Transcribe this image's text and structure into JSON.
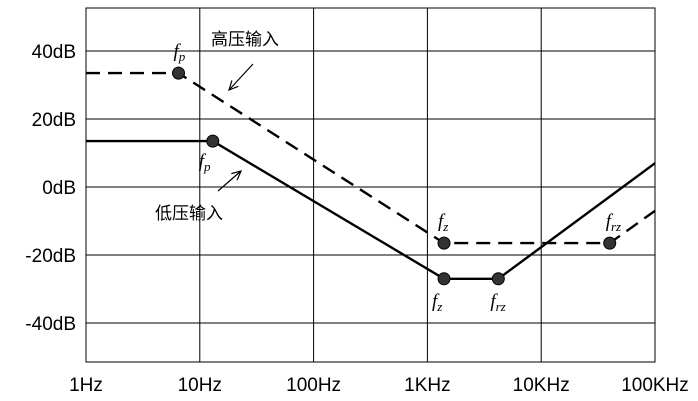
{
  "chart_data": {
    "type": "line",
    "title": "",
    "xlabel": "",
    "ylabel": "",
    "x_scale": "log",
    "xlim": [
      1,
      100000
    ],
    "ylim": [
      -50,
      50
    ],
    "grid": true,
    "x_ticks": [
      {
        "value": 1,
        "label": "1Hz"
      },
      {
        "value": 10,
        "label": "10Hz"
      },
      {
        "value": 100,
        "label": "100Hz"
      },
      {
        "value": 1000,
        "label": "1KHz"
      },
      {
        "value": 10000,
        "label": "10KHz"
      },
      {
        "value": 100000,
        "label": "100KHz"
      }
    ],
    "y_ticks": [
      {
        "value": 40,
        "label": "40dB"
      },
      {
        "value": 20,
        "label": "20dB"
      },
      {
        "value": 0,
        "label": "0dB"
      },
      {
        "value": -20,
        "label": "-20dB"
      },
      {
        "value": -40,
        "label": "-40dB"
      }
    ],
    "series": [
      {
        "name": "高压输入",
        "style": "dashed",
        "color": "#000000",
        "points": [
          [
            1,
            33.5
          ],
          [
            6.5,
            33.5
          ],
          [
            1400,
            -16.5
          ],
          [
            4200,
            -16.5
          ],
          [
            40000,
            -16.5
          ],
          [
            100000,
            -7
          ]
        ],
        "markers": [
          {
            "x": 6.5,
            "y": 33.5,
            "label": "f",
            "sub": "p"
          },
          {
            "x": 1400,
            "y": -16.5,
            "label": "f",
            "sub": "z"
          },
          {
            "x": 40000,
            "y": -16.5,
            "label": "f",
            "sub": "rz"
          }
        ]
      },
      {
        "name": "低压输入",
        "style": "solid",
        "color": "#000000",
        "points": [
          [
            1,
            13.5
          ],
          [
            13,
            13.5
          ],
          [
            1400,
            -27
          ],
          [
            4200,
            -27
          ],
          [
            100000,
            7
          ]
        ],
        "markers": [
          {
            "x": 13,
            "y": 13.5,
            "label": "f",
            "sub": "p"
          },
          {
            "x": 1400,
            "y": -27,
            "label": "f",
            "sub": "z"
          },
          {
            "x": 4200,
            "y": -27,
            "label": "f",
            "sub": "rz"
          }
        ]
      }
    ],
    "annotations": [
      "高压输入",
      "低压输入"
    ]
  }
}
